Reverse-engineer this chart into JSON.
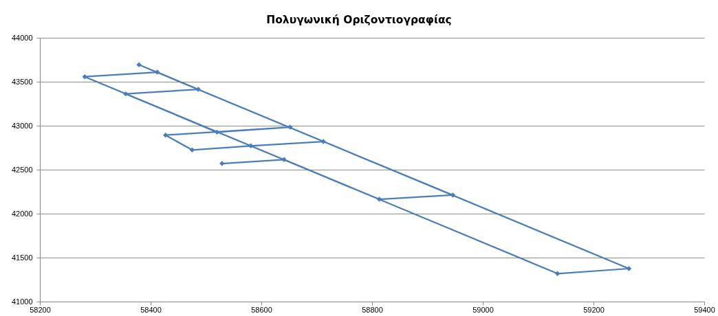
{
  "chart_data": {
    "type": "line",
    "title": "Πολυγωνική Οριζοντιογραφίας",
    "x": [
      58379,
      59264,
      59135,
      58281,
      58412,
      58486,
      58355,
      58520,
      58652,
      58427,
      58475,
      58581,
      58712,
      58946,
      58813,
      58641,
      58529
    ],
    "series": [
      {
        "color": "#4a7ebb",
        "values": [
          43693,
          41375,
          41318,
          43557,
          43609,
          43414,
          43362,
          42927,
          42984,
          42893,
          42724,
          42771,
          42820,
          42211,
          42164,
          42615,
          42570
        ]
      }
    ],
    "xlim": [
      58200,
      59400
    ],
    "xticks": [
      58200,
      58400,
      58600,
      58800,
      59000,
      59200,
      59400
    ],
    "ylim": [
      41000,
      44000
    ],
    "yticks": [
      41000,
      41500,
      42000,
      42500,
      43000,
      43500,
      44000
    ],
    "grid": "y",
    "marker": "diamond"
  }
}
